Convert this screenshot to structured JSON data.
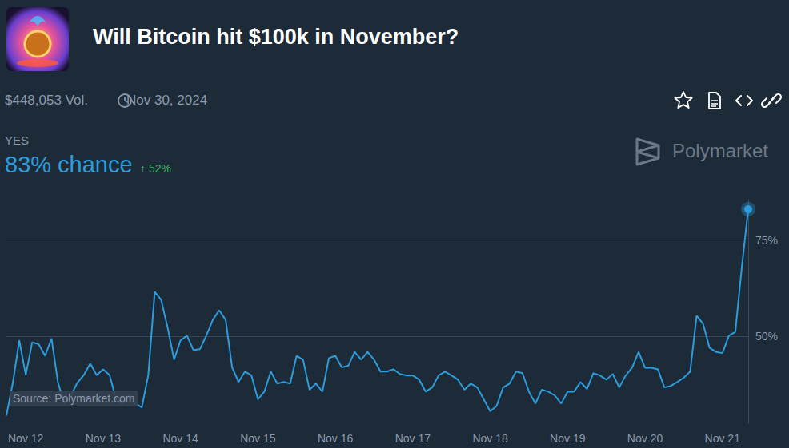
{
  "header": {
    "title": "Will Bitcoin hit $100k in November?",
    "volume": "$448,053 Vol.",
    "end_date": "Nov 30, 2024",
    "outcome": "YES",
    "chance": "83% chance",
    "change": "↑ 52%",
    "brand": "Polymarket"
  },
  "chart_data": {
    "type": "line",
    "categories": [
      null,
      null,
      null,
      "Nov 12",
      null,
      null,
      null,
      null,
      null,
      null,
      null,
      null,
      null,
      null,
      null,
      "Nov 13",
      null,
      null,
      null,
      null,
      null,
      null,
      null,
      null,
      null,
      null,
      null,
      "Nov 14",
      null,
      null,
      null,
      null,
      null,
      null,
      null,
      null,
      null,
      null,
      null,
      "Nov 15",
      null,
      null,
      null,
      null,
      null,
      null,
      null,
      null,
      null,
      null,
      null,
      "Nov 16",
      null,
      null,
      null,
      null,
      null,
      null,
      null,
      null,
      null,
      null,
      null,
      "Nov 17",
      null,
      null,
      null,
      null,
      null,
      null,
      null,
      null,
      null,
      null,
      null,
      "Nov 18",
      null,
      null,
      null,
      null,
      null,
      null,
      null,
      null,
      null,
      null,
      null,
      "Nov 19",
      null,
      null,
      null,
      null,
      null,
      null,
      null,
      null,
      null,
      null,
      null,
      "Nov 20",
      null,
      null,
      null,
      null,
      null,
      null,
      null,
      null,
      null,
      null,
      null,
      "Nov 21",
      null,
      null,
      null,
      null
    ],
    "values": [
      29.5,
      38,
      49,
      40,
      48.5,
      48,
      45,
      49.5,
      38,
      32.6,
      34.7,
      38,
      40,
      43,
      40,
      41.5,
      40,
      33.7,
      32.6,
      34.7,
      32.6,
      31.6,
      40,
      61.6,
      59.5,
      52.3,
      44,
      49,
      50.2,
      46.5,
      46.7,
      50.2,
      54.3,
      56.8,
      54.3,
      42,
      38.2,
      40.9,
      39.9,
      33.7,
      35.7,
      40.9,
      37.8,
      38.2,
      37.8,
      45,
      44,
      36.2,
      37.8,
      35.7,
      44.4,
      45,
      42,
      42.4,
      46,
      44,
      46,
      44,
      40.9,
      40.9,
      41.5,
      40.3,
      39.9,
      39.9,
      38.8,
      35.7,
      36.8,
      39.9,
      40.9,
      39.9,
      38.8,
      36.2,
      37.8,
      36.8,
      33.7,
      30.6,
      32,
      36.8,
      37.8,
      40.9,
      40.5,
      35.7,
      32.6,
      36.2,
      35.7,
      34.7,
      32.6,
      35.7,
      35.7,
      38.2,
      36.4,
      40.5,
      39.9,
      38.8,
      40.3,
      36.8,
      39.9,
      41.9,
      46,
      41.9,
      41.9,
      41.5,
      36.8,
      37.2,
      38.2,
      39.3,
      40.9,
      55.4,
      53.3,
      47.1,
      46,
      45.7,
      50.2,
      51.2,
      67.8,
      83
    ],
    "color": "#2d9cdb",
    "ylim": [
      27.5,
      85.5
    ],
    "yticks": [
      {
        "value": 50,
        "label": "50%"
      },
      {
        "value": 75,
        "label": "75%"
      }
    ],
    "grid": true,
    "annotations": [
      "Source: Polymarket.com"
    ]
  }
}
